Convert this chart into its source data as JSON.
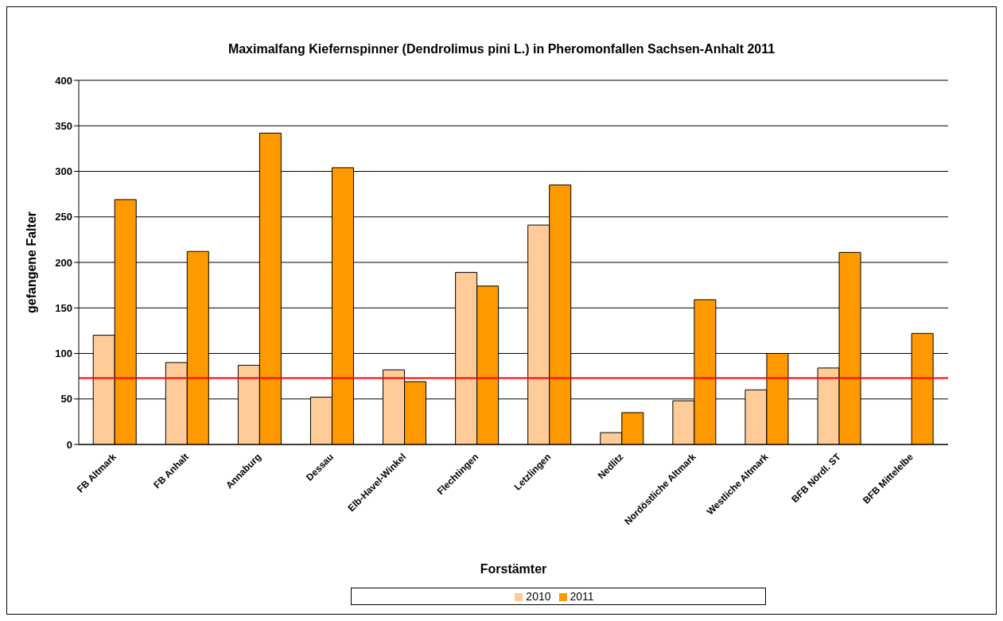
{
  "chart_data": {
    "type": "bar",
    "title": "Maximalfang Kiefernspinner (Dendrolimus pini L.) in Pheromonfallen Sachsen-Anhalt 2011",
    "xlabel": "Forstämter",
    "ylabel": "gefangene Falter",
    "categories": [
      "FB Altmark",
      "FB Anhalt",
      "Annaburg",
      "Dessau",
      "Elb-Havel-Winkel",
      "Flechtingen",
      "Letzlingen",
      "Nedlitz",
      "Nordöstliche Altmark",
      "Westliche Altmark",
      "BFB Nördl. ST",
      "BFB Mittelelbe"
    ],
    "series": [
      {
        "name": "2010",
        "color": "#ffcc99",
        "values": [
          120,
          90,
          87,
          52,
          82,
          189,
          241,
          13,
          48,
          60,
          84,
          null
        ]
      },
      {
        "name": "2011",
        "color": "#ff9900",
        "values": [
          269,
          212,
          342,
          304,
          69,
          174,
          285,
          35,
          159,
          100,
          211,
          122
        ]
      }
    ],
    "ylim": [
      0,
      400
    ],
    "yticks": [
      0,
      50,
      100,
      150,
      200,
      250,
      300,
      350,
      400
    ],
    "grid": "y",
    "legend": "bottom",
    "ref_lines": [
      {
        "axis": "y",
        "value": 73,
        "color": "#ff0000"
      }
    ]
  }
}
